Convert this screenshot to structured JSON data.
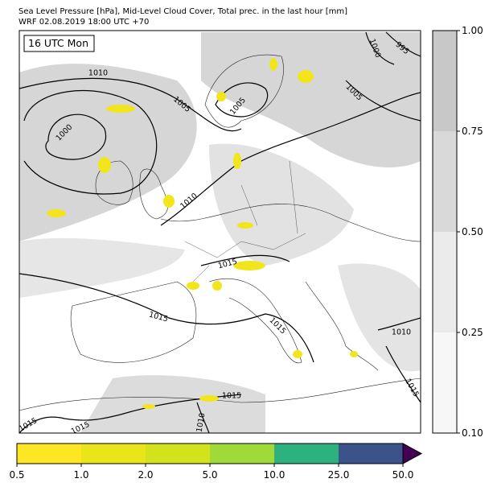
{
  "header": {
    "title": "Sea Level Pressure [hPa], Mid-Level Cloud Cover, Total prec. in the last hour [mm]",
    "subtitle": "WRF 02.08.2019 18:00 UTC +70"
  },
  "map": {
    "time_label": "16 UTC Mon",
    "contour_labels": [
      "1010",
      "1005",
      "1000",
      "1005",
      "1005",
      "1000",
      "995",
      "1010",
      "1015",
      "1015",
      "1015",
      "1010",
      "1015",
      "1015",
      "1010",
      "1015",
      "1015"
    ]
  },
  "cloud_colorbar": {
    "ticks": [
      "0.10",
      "0.25",
      "0.50",
      "0.75",
      "1.00"
    ],
    "colors": [
      "#f7f7f7",
      "#ebebeb",
      "#d9d9d9",
      "#c8c8c8"
    ]
  },
  "precip_colorbar": {
    "ticks": [
      "0.5",
      "1.0",
      "2.0",
      "5.0",
      "10.0",
      "25.0",
      "50.0"
    ],
    "colors": [
      "#fde725",
      "#eae51a",
      "#d2e21b",
      "#a0da39",
      "#2db27d",
      "#3b528b",
      "#440154"
    ]
  }
}
